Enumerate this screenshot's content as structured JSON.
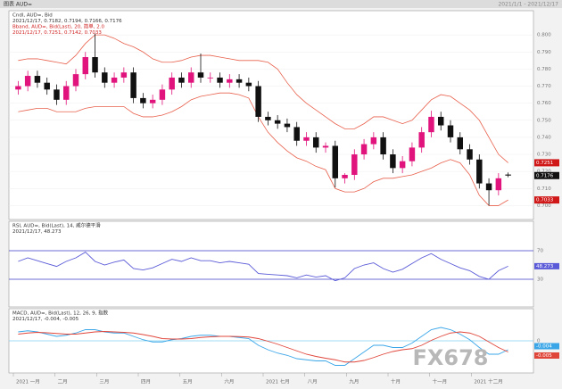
{
  "header": {
    "title": "图表 AUD=",
    "range": "2021/1/1 - 2021/12/17"
  },
  "watermark": "FX678",
  "chart_data": [
    {
      "type": "candlestick",
      "legend": [
        "Cndl, AUD=, Bid",
        "2021/12/17, 0.7182, 0.7194, 0.7166, 0.7176",
        "Bband, AUD=, Bid(Last), 20, 简单, 2.0",
        "2021/12/17, 0.7251, 0.7142, 0.7033"
      ],
      "x_labels": [
        "2021 一月",
        "二月",
        "三月",
        "四月",
        "五月",
        "六月",
        "2021 七月",
        "八月",
        "九月",
        "十月",
        "十一月",
        "2021 十二月"
      ],
      "open": [
        0.768,
        0.77,
        0.776,
        0.772,
        0.768,
        0.762,
        0.77,
        0.777,
        0.787,
        0.778,
        0.772,
        0.775,
        0.778,
        0.763,
        0.76,
        0.762,
        0.768,
        0.775,
        0.772,
        0.778,
        0.775,
        0.775,
        0.772,
        0.774,
        0.772,
        0.77,
        0.752,
        0.75,
        0.748,
        0.746,
        0.738,
        0.74,
        0.734,
        0.735,
        0.716,
        0.718,
        0.73,
        0.736,
        0.74,
        0.73,
        0.722,
        0.726,
        0.734,
        0.743,
        0.752,
        0.747,
        0.74,
        0.733,
        0.727,
        0.713,
        0.709,
        0.7182
      ],
      "high": [
        0.773,
        0.779,
        0.779,
        0.775,
        0.771,
        0.773,
        0.78,
        0.79,
        0.8007,
        0.781,
        0.778,
        0.781,
        0.781,
        0.766,
        0.765,
        0.771,
        0.778,
        0.778,
        0.781,
        0.7891,
        0.778,
        0.778,
        0.777,
        0.777,
        0.775,
        0.773,
        0.755,
        0.753,
        0.751,
        0.749,
        0.743,
        0.743,
        0.737,
        0.738,
        0.719,
        0.733,
        0.739,
        0.743,
        0.743,
        0.733,
        0.729,
        0.737,
        0.746,
        0.7556,
        0.755,
        0.75,
        0.743,
        0.736,
        0.73,
        0.716,
        0.719,
        0.7194
      ],
      "low": [
        0.765,
        0.767,
        0.769,
        0.765,
        0.759,
        0.759,
        0.767,
        0.774,
        0.775,
        0.769,
        0.769,
        0.772,
        0.76,
        0.757,
        0.757,
        0.759,
        0.765,
        0.769,
        0.769,
        0.772,
        0.772,
        0.769,
        0.769,
        0.769,
        0.767,
        0.749,
        0.747,
        0.745,
        0.743,
        0.735,
        0.735,
        0.731,
        0.731,
        0.7106,
        0.713,
        0.715,
        0.727,
        0.733,
        0.727,
        0.719,
        0.719,
        0.723,
        0.731,
        0.74,
        0.744,
        0.737,
        0.73,
        0.724,
        0.71,
        0.7,
        0.706,
        0.7166
      ],
      "close": [
        0.77,
        0.776,
        0.772,
        0.768,
        0.762,
        0.77,
        0.777,
        0.787,
        0.778,
        0.772,
        0.775,
        0.778,
        0.763,
        0.76,
        0.762,
        0.768,
        0.775,
        0.772,
        0.778,
        0.775,
        0.775,
        0.772,
        0.774,
        0.772,
        0.77,
        0.752,
        0.75,
        0.748,
        0.746,
        0.738,
        0.74,
        0.734,
        0.735,
        0.716,
        0.718,
        0.73,
        0.736,
        0.74,
        0.73,
        0.722,
        0.726,
        0.734,
        0.743,
        0.752,
        0.747,
        0.74,
        0.733,
        0.727,
        0.713,
        0.709,
        0.716,
        0.7176
      ],
      "band_upper": [
        0.785,
        0.786,
        0.786,
        0.785,
        0.784,
        0.783,
        0.788,
        0.795,
        0.8,
        0.8,
        0.798,
        0.795,
        0.793,
        0.79,
        0.786,
        0.784,
        0.784,
        0.785,
        0.787,
        0.788,
        0.788,
        0.787,
        0.786,
        0.785,
        0.785,
        0.785,
        0.784,
        0.78,
        0.772,
        0.765,
        0.76,
        0.756,
        0.752,
        0.748,
        0.745,
        0.745,
        0.748,
        0.752,
        0.752,
        0.75,
        0.748,
        0.75,
        0.756,
        0.762,
        0.765,
        0.764,
        0.76,
        0.756,
        0.75,
        0.74,
        0.73,
        0.7251
      ],
      "band_lower": [
        0.755,
        0.756,
        0.757,
        0.757,
        0.755,
        0.755,
        0.755,
        0.757,
        0.758,
        0.758,
        0.758,
        0.758,
        0.754,
        0.752,
        0.752,
        0.753,
        0.755,
        0.758,
        0.762,
        0.764,
        0.765,
        0.766,
        0.766,
        0.765,
        0.763,
        0.752,
        0.743,
        0.737,
        0.732,
        0.728,
        0.726,
        0.723,
        0.721,
        0.71,
        0.708,
        0.708,
        0.71,
        0.714,
        0.716,
        0.716,
        0.717,
        0.718,
        0.72,
        0.722,
        0.725,
        0.727,
        0.725,
        0.718,
        0.706,
        0.7,
        0.7,
        0.7033
      ],
      "up_color": "#e0147c",
      "down_color": "#111111",
      "band_color": "#e8604c",
      "last_labels": [
        "0.7176",
        "0.7251",
        "0.7033"
      ],
      "ylim": [
        0.695,
        0.81
      ],
      "yticks": [
        {
          "value": 0.7,
          "label": "0.700"
        },
        {
          "value": 0.71,
          "label": "0.710"
        },
        {
          "value": 0.72,
          "label": "0.720"
        },
        {
          "value": 0.73,
          "label": "0.730"
        },
        {
          "value": 0.74,
          "label": "0.740"
        },
        {
          "value": 0.75,
          "label": "0.750"
        },
        {
          "value": 0.76,
          "label": "0.760"
        },
        {
          "value": 0.77,
          "label": "0.770"
        },
        {
          "value": 0.78,
          "label": "0.780"
        },
        {
          "value": 0.79,
          "label": "0.790"
        },
        {
          "value": 0.8,
          "label": "0.800"
        }
      ]
    },
    {
      "type": "line",
      "legend": [
        "RSI, AUD=, Bid(Last), 14, 威尔德平滑",
        "2021/12/17, 48.273"
      ],
      "series": [
        {
          "name": "RSI",
          "color": "#5a5ad8",
          "values": [
            55,
            60,
            56,
            52,
            48,
            55,
            60,
            68,
            55,
            50,
            54,
            57,
            45,
            43,
            46,
            52,
            58,
            55,
            60,
            56,
            56,
            53,
            55,
            53,
            51,
            38,
            37,
            36,
            35,
            32,
            36,
            33,
            35,
            28,
            32,
            45,
            50,
            53,
            45,
            40,
            44,
            52,
            60,
            66,
            58,
            52,
            46,
            42,
            34,
            30,
            42,
            48.273
          ]
        }
      ],
      "last_labels": [
        "48.273"
      ],
      "ylim": [
        0,
        100
      ],
      "yticks": [
        30,
        70
      ],
      "grid_color": "#3c3cc8"
    },
    {
      "type": "line",
      "legend": [
        "MACD, AUD=, Bid(Last), 12, 26, 9, 指数",
        "2021/12/17, -0.004, -0.005"
      ],
      "series": [
        {
          "name": "MACD",
          "color": "#3aa6e8",
          "values": [
            0.004,
            0.0045,
            0.004,
            0.003,
            0.002,
            0.0025,
            0.0035,
            0.005,
            0.005,
            0.004,
            0.0035,
            0.0035,
            0.002,
            0.0005,
            -0.0005,
            -0.0005,
            0.0005,
            0.001,
            0.002,
            0.0025,
            0.0025,
            0.002,
            0.002,
            0.0015,
            0.001,
            -0.002,
            -0.004,
            -0.0055,
            -0.0065,
            -0.008,
            -0.0085,
            -0.009,
            -0.009,
            -0.011,
            -0.011,
            -0.008,
            -0.005,
            -0.002,
            -0.002,
            -0.003,
            -0.003,
            -0.001,
            0.002,
            0.005,
            0.006,
            0.005,
            0.003,
            0.0005,
            -0.003,
            -0.006,
            -0.006,
            -0.004
          ]
        },
        {
          "name": "Signal",
          "color": "#e0453a",
          "values": [
            0.003,
            0.0035,
            0.0038,
            0.0036,
            0.0033,
            0.003,
            0.003,
            0.0035,
            0.004,
            0.0042,
            0.004,
            0.0038,
            0.0035,
            0.0028,
            0.002,
            0.001,
            0.0008,
            0.0008,
            0.001,
            0.0015,
            0.0018,
            0.002,
            0.002,
            0.0019,
            0.0017,
            0.001,
            -0.0002,
            -0.0015,
            -0.003,
            -0.0045,
            -0.006,
            -0.007,
            -0.0078,
            -0.0085,
            -0.0095,
            -0.0095,
            -0.0088,
            -0.0075,
            -0.006,
            -0.0048,
            -0.004,
            -0.0035,
            -0.002,
            0.0002,
            0.002,
            0.0035,
            0.004,
            0.0035,
            0.002,
            -0.0005,
            -0.003,
            -0.005
          ]
        }
      ],
      "last_labels": [
        "-0.004",
        "-0.005"
      ],
      "ylim": [
        -0.012,
        0.012
      ],
      "yticks": [
        0
      ],
      "grid_color": "#7fd0f0"
    }
  ]
}
